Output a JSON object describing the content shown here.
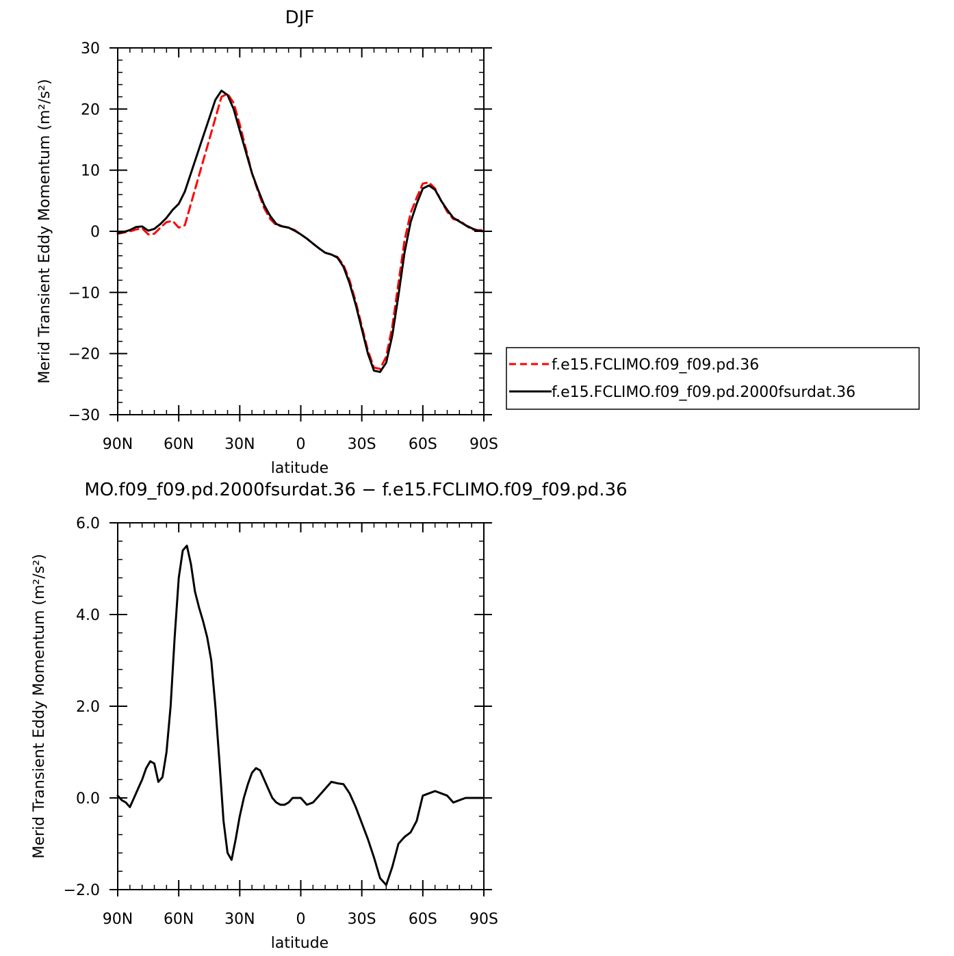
{
  "chart_data": [
    {
      "type": "line",
      "title": "DJF",
      "xlabel": "latitude",
      "ylabel": "Merid Transient Eddy Momentum (m²/s²)",
      "x_tick_labels": [
        "90N",
        "60N",
        "30N",
        "0",
        "30S",
        "60S",
        "90S"
      ],
      "x_tick_values": [
        -90,
        -60,
        -30,
        0,
        30,
        60,
        90
      ],
      "xlim": [
        -90,
        90
      ],
      "ylim": [
        -30,
        30
      ],
      "y_tick_labels": [
        "30",
        "20",
        "10",
        "0",
        "−10",
        "−20",
        "−30"
      ],
      "y_tick_values": [
        30,
        20,
        10,
        0,
        -10,
        -20,
        -30
      ],
      "legend_position": "right",
      "series": [
        {
          "name": "f.e15.FCLIMO.f09_f09.pd.36",
          "color": "#ff0000",
          "dash": "dashed",
          "x": [
            -90,
            -87,
            -84,
            -81,
            -78,
            -75,
            -72,
            -69,
            -66,
            -63,
            -60,
            -57,
            -54,
            -51,
            -48,
            -45,
            -42,
            -39,
            -36,
            -33,
            -30,
            -27,
            -24,
            -21,
            -18,
            -15,
            -12,
            -9,
            -6,
            -3,
            0,
            3,
            6,
            9,
            12,
            15,
            18,
            21,
            24,
            27,
            30,
            33,
            36,
            39,
            42,
            45,
            48,
            51,
            54,
            57,
            60,
            63,
            66,
            69,
            72,
            75,
            78,
            81,
            84,
            87,
            90
          ],
          "y": [
            -0.4,
            -0.2,
            0.0,
            0.3,
            0.5,
            -0.5,
            -0.4,
            0.6,
            1.5,
            1.7,
            0.6,
            1.0,
            4.5,
            8.0,
            11.5,
            15.0,
            18.5,
            22.0,
            22.5,
            21.0,
            17.5,
            13.5,
            9.5,
            6.5,
            3.8,
            2.0,
            1.0,
            0.8,
            0.6,
            0.2,
            -0.5,
            -1.2,
            -2.0,
            -2.8,
            -3.5,
            -3.8,
            -4.2,
            -5.5,
            -8.0,
            -11.5,
            -15.5,
            -19.5,
            -22.3,
            -22.5,
            -20.5,
            -15.5,
            -8.5,
            -1.5,
            3.0,
            5.5,
            7.8,
            8.0,
            7.0,
            5.0,
            3.2,
            2.0,
            1.8,
            1.0,
            0.3,
            0.2,
            0.2
          ]
        },
        {
          "name": "f.e15.FCLIMO.f09_f09.pd.2000fsurdat.36",
          "color": "#000000",
          "dash": "solid",
          "x": [
            -90,
            -87,
            -84,
            -81,
            -78,
            -75,
            -72,
            -69,
            -66,
            -63,
            -60,
            -57,
            -54,
            -51,
            -48,
            -45,
            -42,
            -39,
            -36,
            -33,
            -30,
            -27,
            -24,
            -21,
            -18,
            -15,
            -12,
            -9,
            -6,
            -3,
            0,
            3,
            6,
            9,
            12,
            15,
            18,
            21,
            24,
            27,
            30,
            33,
            36,
            39,
            42,
            45,
            48,
            51,
            54,
            57,
            60,
            63,
            66,
            69,
            72,
            75,
            78,
            81,
            84,
            87,
            90
          ],
          "y": [
            -0.3,
            -0.1,
            0.2,
            0.7,
            0.8,
            0.1,
            0.4,
            1.2,
            2.2,
            3.5,
            4.5,
            6.5,
            9.5,
            12.5,
            15.5,
            18.5,
            21.5,
            23.0,
            22.3,
            20.0,
            16.5,
            13.0,
            9.5,
            6.8,
            4.3,
            2.5,
            1.2,
            0.8,
            0.6,
            0.1,
            -0.5,
            -1.2,
            -2.0,
            -2.8,
            -3.5,
            -3.8,
            -4.3,
            -5.8,
            -8.5,
            -12.0,
            -16.0,
            -20.0,
            -22.8,
            -23.0,
            -21.5,
            -17.0,
            -10.5,
            -3.5,
            1.5,
            4.5,
            7.0,
            7.5,
            6.8,
            5.0,
            3.5,
            2.2,
            1.6,
            1.0,
            0.5,
            0.1,
            0.0
          ]
        }
      ]
    },
    {
      "type": "line",
      "title": "MO.f09_f09.pd.2000fsurdat.36 − f.e15.FCLIMO.f09_f09.pd.36",
      "xlabel": "latitude",
      "ylabel": "Merid Transient Eddy Momentum (m²/s²)",
      "x_tick_labels": [
        "90N",
        "60N",
        "30N",
        "0",
        "30S",
        "60S",
        "90S"
      ],
      "x_tick_values": [
        -90,
        -60,
        -30,
        0,
        30,
        60,
        90
      ],
      "xlim": [
        -90,
        90
      ],
      "ylim": [
        -2,
        6
      ],
      "y_tick_labels": [
        "6.0",
        "4.0",
        "2.0",
        "0.0",
        "−2.0"
      ],
      "y_tick_values": [
        6,
        4,
        2,
        0,
        -2
      ],
      "series": [
        {
          "name": "",
          "color": "#000000",
          "dash": "solid",
          "x": [
            -90,
            -88,
            -86,
            -84,
            -82,
            -80,
            -78,
            -76,
            -74,
            -72,
            -70,
            -68,
            -66,
            -64,
            -62,
            -60,
            -58,
            -56,
            -54,
            -52,
            -50,
            -48,
            -46,
            -44,
            -42,
            -40,
            -38,
            -36,
            -34,
            -32,
            -30,
            -28,
            -26,
            -24,
            -22,
            -20,
            -18,
            -16,
            -14,
            -12,
            -10,
            -8,
            -6,
            -4,
            -2,
            0,
            3,
            6,
            9,
            12,
            15,
            18,
            21,
            24,
            27,
            30,
            33,
            36,
            39,
            42,
            45,
            48,
            51,
            54,
            57,
            60,
            63,
            66,
            69,
            72,
            75,
            78,
            81,
            84,
            87,
            90
          ],
          "y": [
            0.05,
            -0.05,
            -0.1,
            -0.2,
            0.0,
            0.2,
            0.4,
            0.65,
            0.8,
            0.75,
            0.35,
            0.45,
            1.0,
            2.0,
            3.5,
            4.8,
            5.4,
            5.5,
            5.1,
            4.5,
            4.15,
            3.85,
            3.5,
            3.0,
            2.0,
            0.8,
            -0.5,
            -1.2,
            -1.35,
            -0.9,
            -0.4,
            0.0,
            0.3,
            0.55,
            0.65,
            0.6,
            0.4,
            0.2,
            0.0,
            -0.1,
            -0.15,
            -0.15,
            -0.1,
            0.0,
            0.0,
            0.0,
            -0.15,
            -0.1,
            0.05,
            0.2,
            0.35,
            0.32,
            0.3,
            0.1,
            -0.2,
            -0.55,
            -0.9,
            -1.3,
            -1.75,
            -1.9,
            -1.5,
            -1.0,
            -0.85,
            -0.75,
            -0.5,
            0.05,
            0.1,
            0.15,
            0.1,
            0.05,
            -0.1,
            -0.05,
            0.0,
            0.0,
            0.0,
            0.0
          ]
        }
      ]
    }
  ]
}
